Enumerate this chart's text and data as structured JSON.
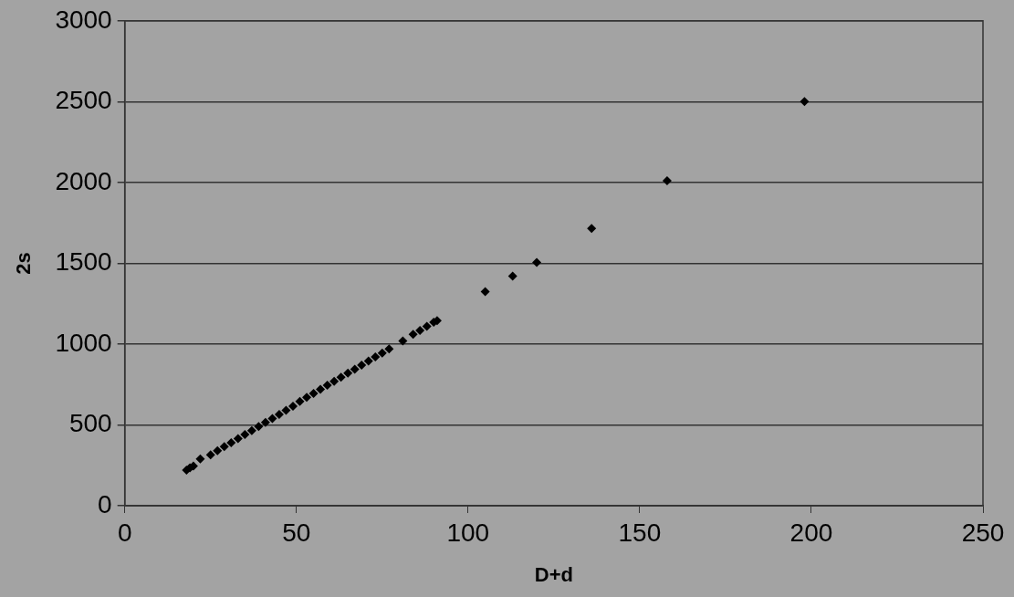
{
  "chart_data": {
    "type": "scatter",
    "xlabel": "D+d",
    "ylabel": "2s",
    "x": [
      18,
      19,
      20,
      22,
      25,
      27,
      29,
      31,
      33,
      35,
      37,
      39,
      41,
      43,
      45,
      47,
      49,
      51,
      53,
      55,
      57,
      59,
      61,
      63,
      65,
      67,
      69,
      71,
      73,
      75,
      77,
      81,
      84,
      86,
      88,
      90,
      91,
      105,
      113,
      120,
      136,
      158,
      198
    ],
    "series": [
      {
        "color": "#000000",
        "values": [
          220,
          235,
          245,
          290,
          315,
          340,
          365,
          390,
          415,
          440,
          465,
          490,
          515,
          540,
          565,
          590,
          615,
          645,
          670,
          695,
          720,
          745,
          770,
          795,
          820,
          845,
          870,
          895,
          920,
          945,
          970,
          1020,
          1060,
          1085,
          1110,
          1135,
          1145,
          1325,
          1420,
          1505,
          1715,
          2010,
          2500
        ]
      }
    ],
    "xlim": [
      0,
      250
    ],
    "xticks": [
      0,
      50,
      100,
      150,
      200,
      250
    ],
    "ylim": [
      0,
      3000
    ],
    "yticks": [
      0,
      500,
      1000,
      1500,
      2000,
      2500,
      3000
    ],
    "grid": "y",
    "marker": "diamond",
    "legend": false
  }
}
